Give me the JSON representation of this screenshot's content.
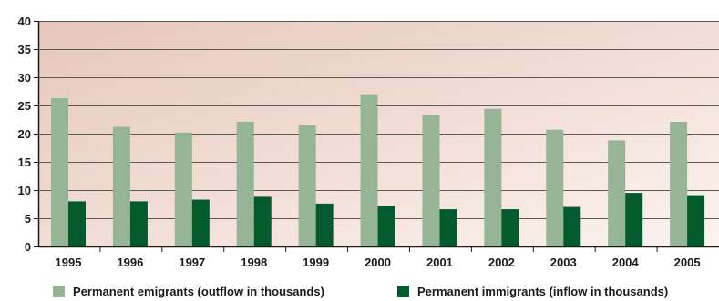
{
  "chart_data": {
    "type": "bar",
    "categories": [
      "1995",
      "1996",
      "1997",
      "1998",
      "1999",
      "2000",
      "2001",
      "2002",
      "2003",
      "2004",
      "2005"
    ],
    "series": [
      {
        "name": "Permanent emigrants (outflow in thousands)",
        "values": [
          26.3,
          21.2,
          20.2,
          22.1,
          21.5,
          27.0,
          23.3,
          24.4,
          20.7,
          18.8,
          22.1
        ],
        "color": "#95b596"
      },
      {
        "name": "Permanent immigrants (inflow in thousands)",
        "values": [
          8.0,
          8.0,
          8.3,
          8.8,
          7.6,
          7.2,
          6.6,
          6.6,
          7.0,
          9.5,
          9.1
        ],
        "color": "#035a2c"
      }
    ],
    "yticks": [
      0,
      5,
      10,
      15,
      20,
      25,
      30,
      35,
      40
    ],
    "ylim": [
      0,
      40
    ],
    "grid": true,
    "legend_position": "bottom",
    "title": "",
    "xlabel": "",
    "ylabel": "",
    "background_gradient": [
      "#e6c7bb",
      "#fcf3ef"
    ],
    "gridline_color": "#5a5a5a"
  }
}
